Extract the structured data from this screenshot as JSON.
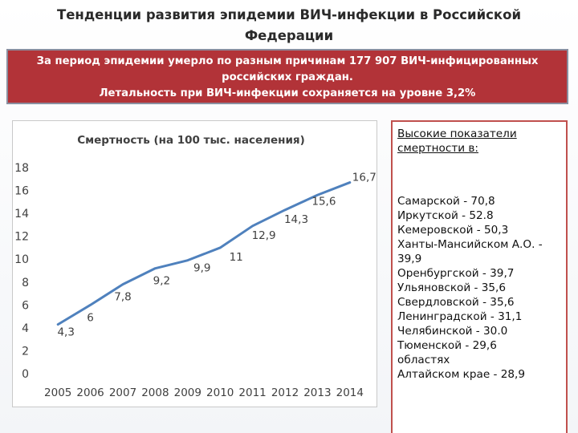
{
  "slide": {
    "title_line1": "Тенденции развития эпидемии ВИЧ-инфекции  в Российской",
    "title_line2": "Федерации"
  },
  "banner": {
    "line1": "За период эпидемии умерло по разным причинам 177 907 ВИЧ-инфицированных",
    "line2": "российских граждан.",
    "line3": "Летальность при ВИЧ-инфекции сохраняется на уровне  3,2%"
  },
  "side_panel": {
    "heading_line1": "Высокие показатели",
    "heading_line2": "смертности ",
    "heading_suffix": "в:",
    "items": [
      "Самарской  - 70,8",
      "Иркутской  - 52.8",
      "Кемеровской - 50,3",
      "Ханты-Мансийском А.О.  - 39,9",
      "Оренбургской - 39,7",
      "Ульяновской  - 35,6",
      "Свердловской  -  35,6",
      "Ленинградской - 31,1",
      "Челябинской  - 30.0",
      "Тюменской  - 29,6",
      "областях",
      "Алтайском крае  - 28,9"
    ]
  },
  "chart_data": {
    "type": "line",
    "title": "Смертность (на 100 тыс. населения)",
    "x": [
      "2005",
      "2006",
      "2007",
      "2008",
      "2009",
      "2010",
      "2011",
      "2012",
      "2013",
      "2014"
    ],
    "series": [
      {
        "values": [
          4.3,
          6,
          7.8,
          9.2,
          9.9,
          11,
          12.9,
          14.3,
          15.6,
          16.7
        ]
      }
    ],
    "data_labels": [
      "4,3",
      "6",
      "7,8",
      "9,2",
      "9,9",
      "11",
      "12,9",
      "14,3",
      "15,6",
      "16,7"
    ],
    "y_ticks": [
      "0",
      "2",
      "4",
      "6",
      "8",
      "10",
      "12",
      "14",
      "16",
      "18"
    ],
    "ylim": [
      0,
      18
    ],
    "grid": false,
    "line_color": "#4f81bd"
  }
}
